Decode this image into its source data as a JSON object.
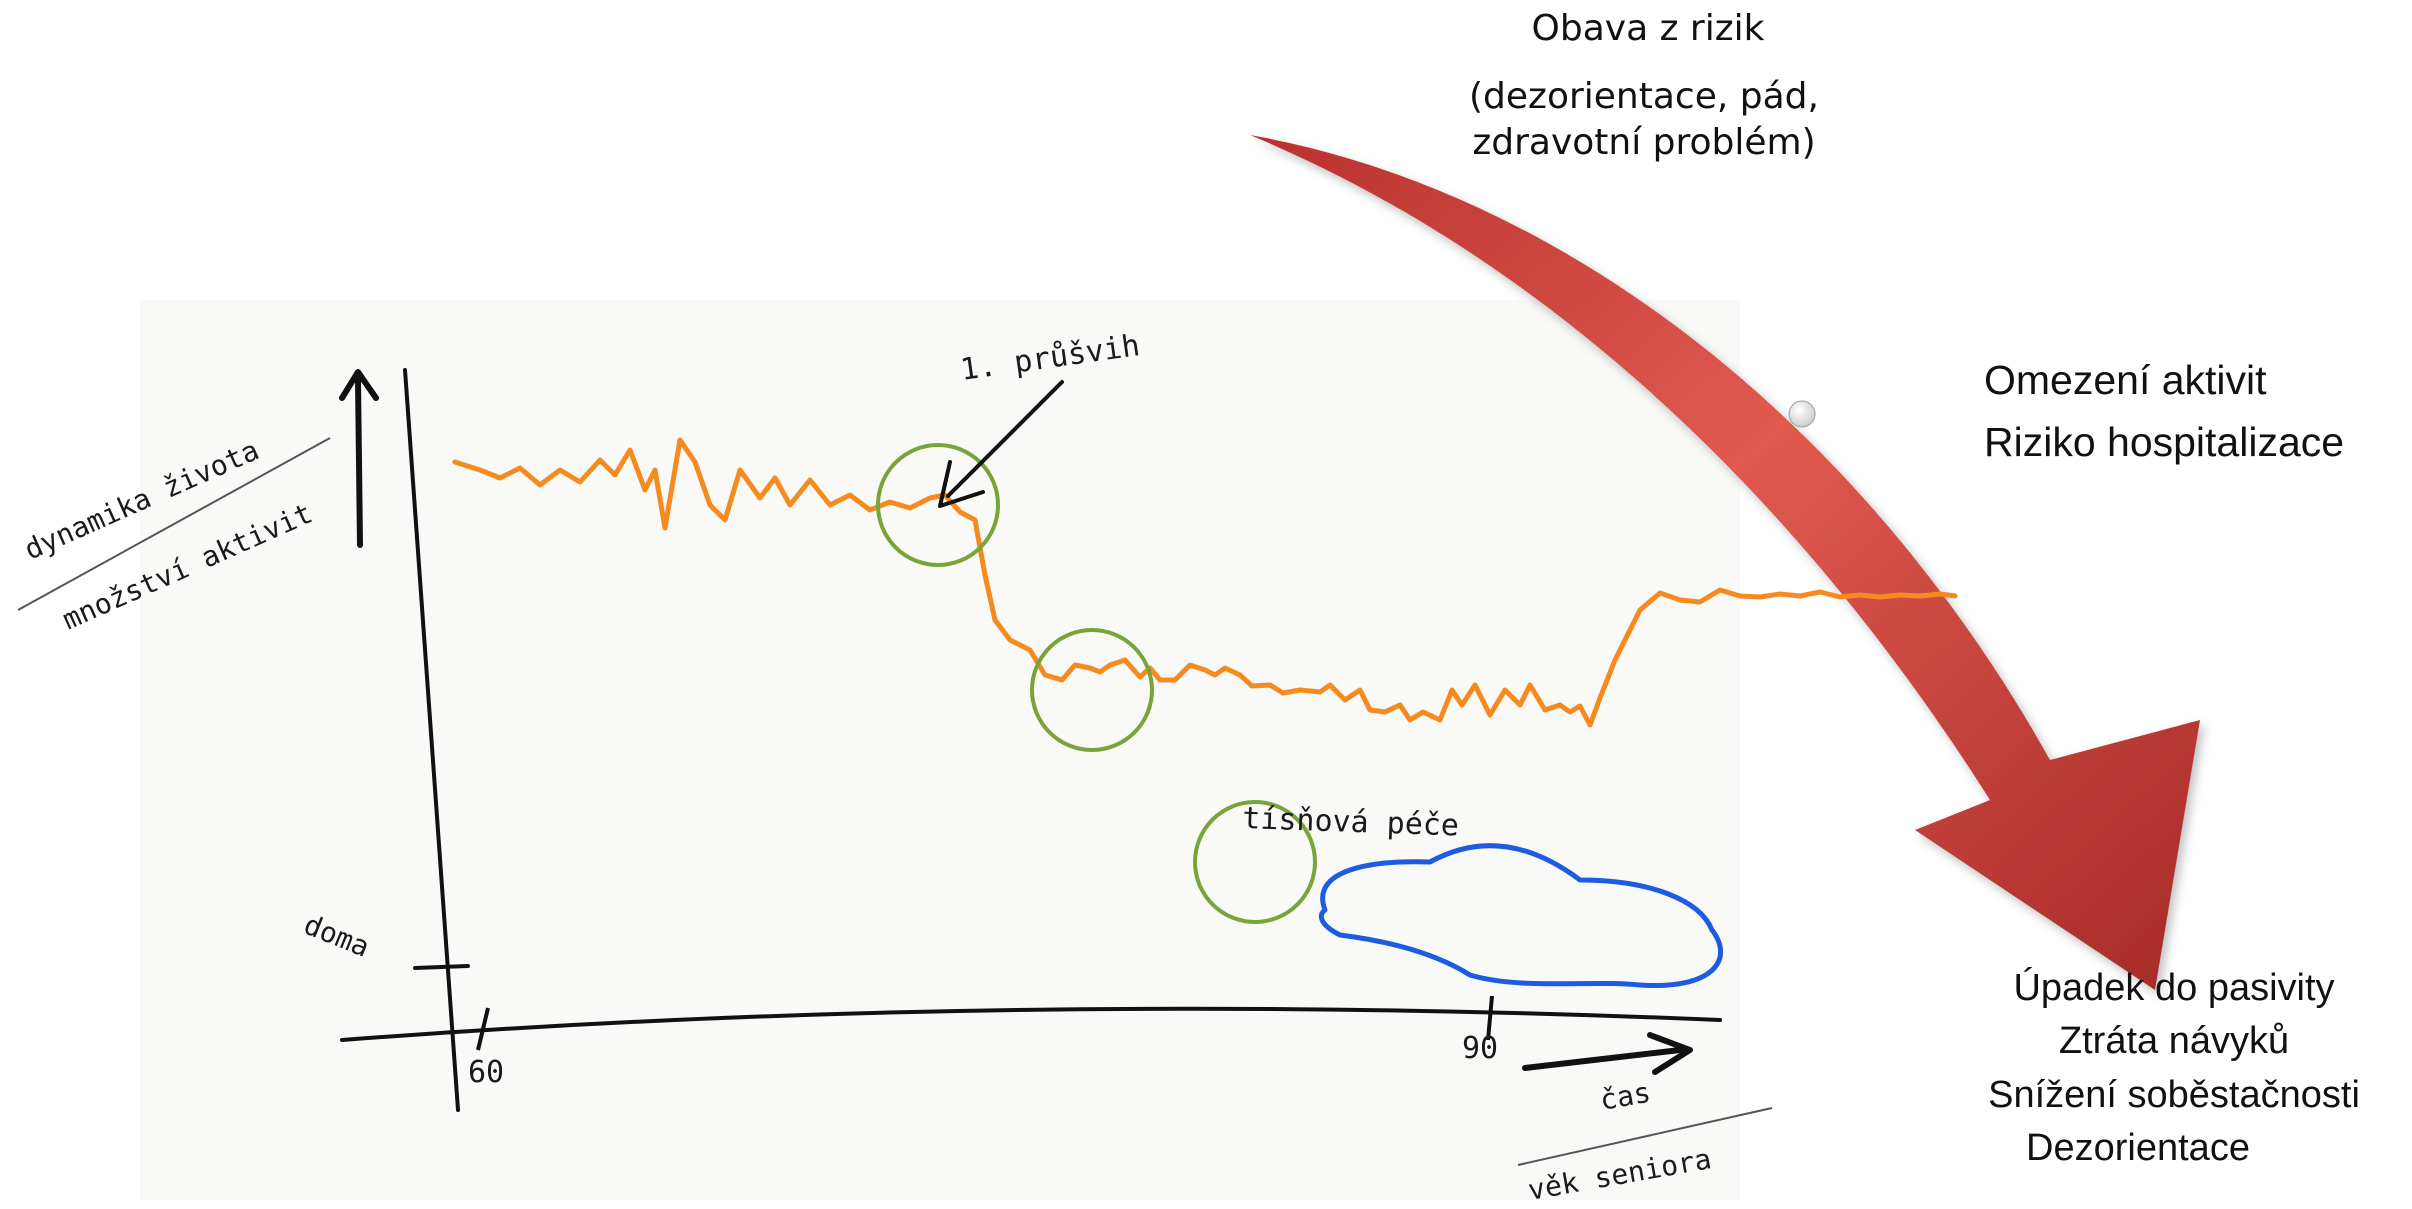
{
  "colors": {
    "trend": "#F58A1F",
    "event_circle": "#7AA33A",
    "care_blob": "#1E5BE0",
    "risk_arrow_dark": "#B8312F",
    "risk_arrow_light": "#E05A50",
    "ink": "#1a1a1a",
    "axis_divider": "#555555"
  },
  "sketch": {
    "y_axis": {
      "label_top": "dynamika života",
      "label_bottom": "množství aktivit"
    },
    "x_axis": {
      "label_top": "čas",
      "label_bottom": "věk seniora",
      "tick_start": "60",
      "tick_end": "90"
    },
    "home_marker": "doma",
    "first_trouble": "1. průšvih",
    "emergency_care": "tísňová péče"
  },
  "risk_panel": {
    "top_title": "Obava z rizik",
    "top_detail_1": "(dezorientace, pád,",
    "top_detail_2": "zdravotní problém)",
    "middle_1": "Omezení aktivit",
    "middle_2": "Riziko hospitalizace",
    "bottom": [
      "Úpadek do pasivity",
      "Ztráta návyků",
      "Snížení soběstačnosti",
      "Dezorientace"
    ]
  }
}
